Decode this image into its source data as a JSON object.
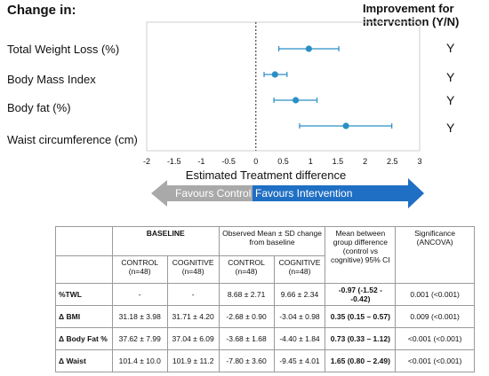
{
  "header": {
    "left": "Change in:",
    "right_line1": "Improvement for",
    "right_line2": "intervention (Y/N)"
  },
  "chart_data": {
    "type": "forest",
    "xlabel": "Estimated Treatment difference",
    "xlim": [
      -2,
      3
    ],
    "xticks": [
      "-2",
      "-1.5",
      "-1",
      "-0.5",
      "0",
      "0.5",
      "1",
      "1.5",
      "2",
      "2.5",
      "3"
    ],
    "reference_line": 0,
    "color": "#2a8fc5",
    "rows": [
      {
        "label": "Total Weight Loss (%)",
        "estimate": 0.97,
        "lower": 0.42,
        "upper": 1.52,
        "improved": "Y"
      },
      {
        "label": "Body Mass Index",
        "estimate": 0.35,
        "lower": 0.15,
        "upper": 0.57,
        "improved": "Y"
      },
      {
        "label": "Body fat (%)",
        "estimate": 0.73,
        "lower": 0.33,
        "upper": 1.12,
        "improved": "Y"
      },
      {
        "label": "Waist circumference (cm)",
        "estimate": 1.65,
        "lower": 0.8,
        "upper": 2.49,
        "improved": "Y"
      }
    ]
  },
  "arrows": {
    "left_label": "Favours Control",
    "right_label": "Favours Intervention",
    "left_color": "#a9a9a9",
    "right_color": "#1f6fc4"
  },
  "table": {
    "baseline": "BASELINE",
    "observed": "Observed Mean ± SD change from baseline",
    "mean_between": "Mean between group difference (control vs cognitive) 95% CI",
    "significance": "Significance (ANCOVA)",
    "control": "CONTROL (n=48)",
    "cognitive": "COGNITIVE (n=48)",
    "rows": [
      {
        "label": "%TWL",
        "b_control": "-",
        "b_cognitive": "-",
        "o_control": "8.68 ± 2.71",
        "o_cognitive": "9.66 ± 2.34",
        "diff": "-0.97 (-1.52 - -0.42)",
        "sig": "0.001 (<0.001)"
      },
      {
        "label": "Δ BMI",
        "b_control": "31.18 ± 3.98",
        "b_cognitive": "31.71 ± 4.20",
        "o_control": "-2.68 ± 0.90",
        "o_cognitive": "-3.04 ± 0.98",
        "diff": "0.35 (0.15 – 0.57)",
        "sig": "0.009 (<0.001)"
      },
      {
        "label": "Δ Body Fat %",
        "b_control": "37.62 ± 7.99",
        "b_cognitive": "37.04 ± 6.09",
        "o_control": "-3.68 ± 1.68",
        "o_cognitive": "-4.40 ± 1.84",
        "diff": "0.73 (0.33 – 1.12)",
        "sig": "<0.001 (<0.001)"
      },
      {
        "label": "Δ Waist",
        "b_control": "101.4 ± 10.0",
        "b_cognitive": "101.9 ± 11.2",
        "o_control": "-7.80 ± 3.60",
        "o_cognitive": "-9.45 ± 4.01",
        "diff": "1.65 (0.80 – 2.49)",
        "sig": "<0.001 (<0.001)"
      }
    ]
  }
}
